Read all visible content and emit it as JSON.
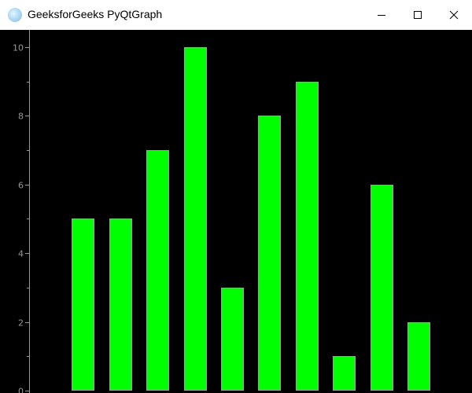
{
  "window": {
    "title": "GeeksforGeeks PyQtGraph",
    "app_icon": "pyqtgraph-logo-icon",
    "controls": [
      "minimize-icon",
      "maximize-icon",
      "close-icon"
    ]
  },
  "chart_data": {
    "type": "bar",
    "x": [
      1,
      2,
      3,
      4,
      5,
      6,
      7,
      8,
      9,
      10
    ],
    "values": [
      5,
      5,
      7,
      10,
      3,
      8,
      9,
      1,
      6,
      2
    ],
    "bar_width": 0.6,
    "bar_color": "#00ff00",
    "bar_edge_color": "#a0a0a0",
    "background": "#000000",
    "axis_color": "#969696",
    "title": "",
    "xlabel": "",
    "ylabel": "",
    "xlim": [
      -0.45,
      11.43
    ],
    "ylim": [
      -0.07,
      10.5
    ],
    "y_ticks": [
      "0",
      "2",
      "4",
      "6",
      "8",
      "10"
    ],
    "x_axis_visible": false,
    "grid": false
  }
}
